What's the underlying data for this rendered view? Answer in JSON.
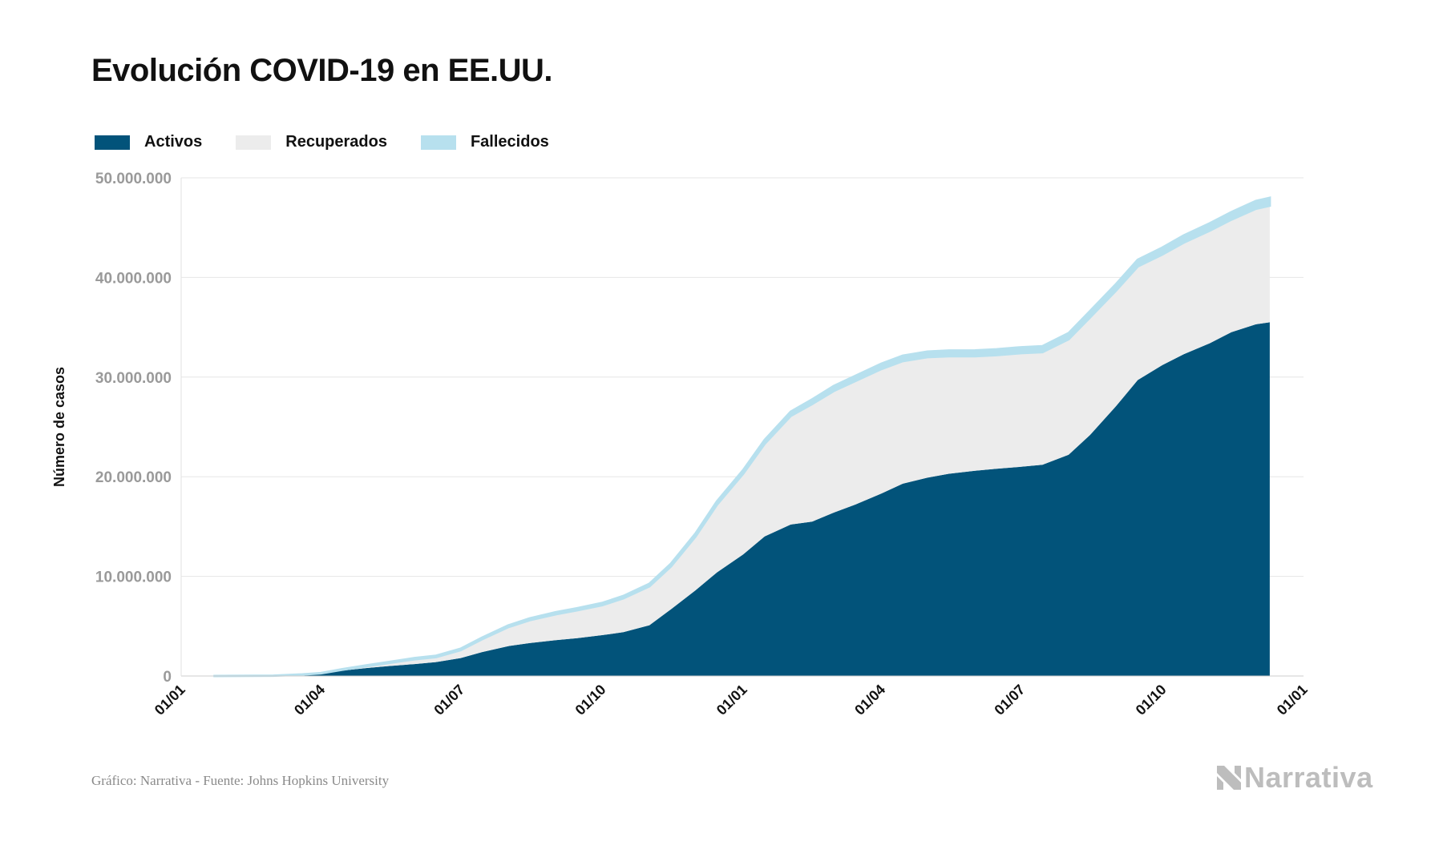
{
  "title": "Evolución COVID-19 en EE.UU.",
  "legend": [
    {
      "label": "Activos",
      "color": "#02537a"
    },
    {
      "label": "Recuperados",
      "color": "#ececec"
    },
    {
      "label": "Fallecidos",
      "color": "#b7e0ee"
    }
  ],
  "footer": {
    "source": "Gráfico: Narrativa - Fuente: Johns Hopkins University",
    "brand": "Narrativa"
  },
  "chart_data": {
    "type": "area",
    "stacked": true,
    "ylabel": "Número de casos",
    "xlabel": "",
    "ylim": [
      0,
      50000000
    ],
    "yticks": [
      0,
      10000000,
      20000000,
      30000000,
      40000000,
      50000000
    ],
    "ytick_labels": [
      "0",
      "10.000.000",
      "20.000.000",
      "30.000.000",
      "40.000.000",
      "50.000.000"
    ],
    "xlim": [
      "2020-01-01",
      "2022-01-01"
    ],
    "xticks": [
      "2020-01-01",
      "2020-04-01",
      "2020-07-01",
      "2020-10-01",
      "2021-01-01",
      "2021-04-01",
      "2021-07-01",
      "2021-10-01",
      "2022-01-01"
    ],
    "xtick_labels": [
      "01/01",
      "01/04",
      "01/07",
      "01/10",
      "01/01",
      "01/04",
      "01/07",
      "01/10",
      "01/01"
    ],
    "grid": true,
    "legend_position": "top-left",
    "x": [
      "2020-01-22",
      "2020-03-01",
      "2020-03-20",
      "2020-04-01",
      "2020-04-15",
      "2020-05-01",
      "2020-05-15",
      "2020-06-01",
      "2020-06-15",
      "2020-07-01",
      "2020-07-15",
      "2020-08-01",
      "2020-08-15",
      "2020-09-01",
      "2020-09-15",
      "2020-10-01",
      "2020-10-15",
      "2020-11-01",
      "2020-11-15",
      "2020-12-01",
      "2020-12-15",
      "2021-01-01",
      "2021-01-15",
      "2021-02-01",
      "2021-02-15",
      "2021-03-01",
      "2021-03-15",
      "2021-04-01",
      "2021-04-15",
      "2021-05-01",
      "2021-05-15",
      "2021-06-01",
      "2021-06-15",
      "2021-07-01",
      "2021-07-15",
      "2021-08-01",
      "2021-08-15",
      "2021-09-01",
      "2021-09-15",
      "2021-10-01",
      "2021-10-15",
      "2021-11-01",
      "2021-11-15",
      "2021-12-01",
      "2021-12-10"
    ],
    "series": [
      {
        "name": "Activos",
        "values": [
          0,
          30000,
          150000,
          250000,
          550000,
          800000,
          1000000,
          1200000,
          1400000,
          1800000,
          2400000,
          3000000,
          3300000,
          3600000,
          3800000,
          4100000,
          4400000,
          5100000,
          6700000,
          8600000,
          10400000,
          12200000,
          14000000,
          15200000,
          15500000,
          16400000,
          17200000,
          18300000,
          19300000,
          19900000,
          20300000,
          20600000,
          20800000,
          21000000,
          21200000,
          22200000,
          24200000,
          27100000,
          29700000,
          31200000,
          32300000,
          33400000,
          34500000,
          35300000,
          35500000
        ]
      },
      {
        "name": "Recuperados",
        "values": [
          0,
          0,
          0,
          20000,
          80000,
          200000,
          300000,
          480000,
          500000,
          800000,
          1300000,
          1900000,
          2300000,
          2600000,
          2800000,
          3000000,
          3400000,
          3900000,
          4300000,
          5400000,
          6800000,
          8100000,
          9300000,
          10900000,
          11800000,
          12200000,
          12400000,
          12500000,
          12300000,
          12100000,
          11800000,
          11500000,
          11400000,
          11400000,
          11300000,
          11600000,
          11800000,
          11600000,
          11400000,
          11100000,
          11200000,
          11300000,
          11300000,
          11600000,
          11700000
        ]
      },
      {
        "name": "Fallecidos",
        "values": [
          0,
          3000,
          10000,
          20000,
          50000,
          80000,
          100000,
          120000,
          130000,
          140000,
          150000,
          170000,
          180000,
          200000,
          210000,
          220000,
          230000,
          250000,
          270000,
          300000,
          330000,
          360000,
          390000,
          430000,
          460000,
          500000,
          520000,
          540000,
          550000,
          560000,
          570000,
          580000,
          590000,
          590000,
          600000,
          610000,
          630000,
          650000,
          670000,
          690000,
          710000,
          740000,
          760000,
          780000,
          790000
        ]
      }
    ]
  }
}
